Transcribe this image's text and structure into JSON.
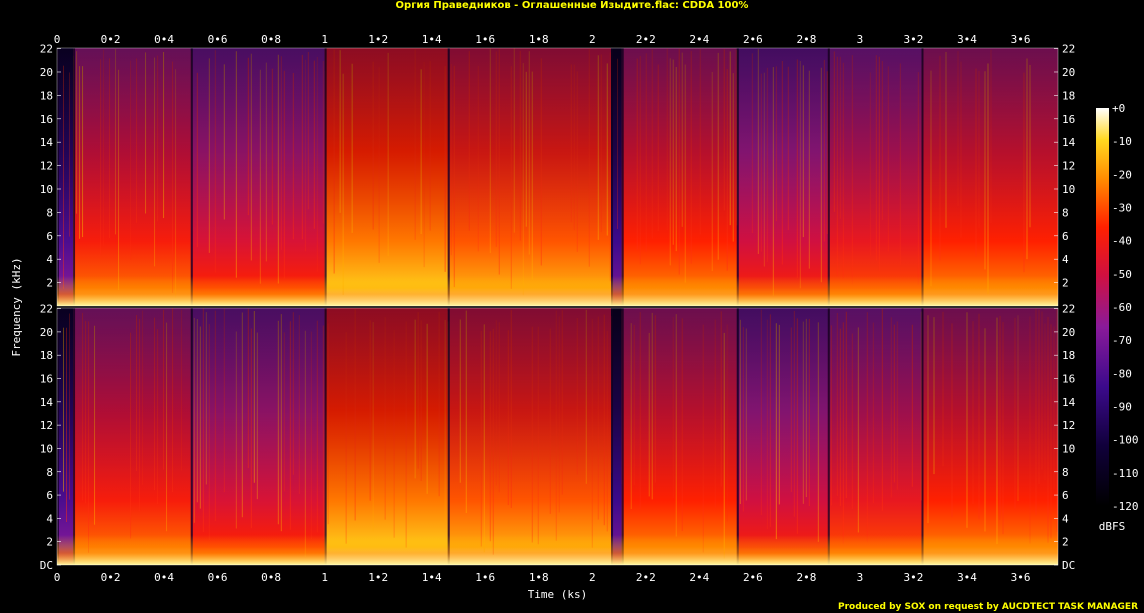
{
  "chart_data": {
    "type": "heatmap",
    "title": "Оргия Праведников - Оглашенные Изыдите.flac: CDDA 100%",
    "xlabel": "Time (ks)",
    "ylabel": "Frequency (kHz)",
    "colorbar_label": "dBFS",
    "channels": 2,
    "xlim": [
      0,
      3.74
    ],
    "ylim": [
      0,
      22.05
    ],
    "x_ticks": [
      "0",
      "0•2",
      "0•4",
      "0•6",
      "0•8",
      "1",
      "1•2",
      "1•4",
      "1•6",
      "1•8",
      "2",
      "2•2",
      "2•4",
      "2•6",
      "2•8",
      "3",
      "3•2",
      "3•4",
      "3•6"
    ],
    "y_ticks": [
      "DC",
      "2",
      "4",
      "6",
      "8",
      "10",
      "12",
      "14",
      "16",
      "18",
      "20",
      "22"
    ],
    "colorbar_ticks": [
      "+0",
      "-10",
      "-20",
      "-30",
      "-40",
      "-50",
      "-60",
      "-70",
      "-80",
      "-90",
      "-100",
      "-110",
      "-120"
    ],
    "colorbar_range": [
      -120,
      0
    ],
    "segments": [
      {
        "start": 0.0,
        "end": 0.06,
        "level": 0.25
      },
      {
        "start": 0.06,
        "end": 0.5,
        "level": 0.6
      },
      {
        "start": 0.5,
        "end": 1.0,
        "level": 0.52
      },
      {
        "start": 1.0,
        "end": 1.46,
        "level": 0.72
      },
      {
        "start": 1.46,
        "end": 2.07,
        "level": 0.68
      },
      {
        "start": 2.07,
        "end": 2.11,
        "level": 0.22
      },
      {
        "start": 2.11,
        "end": 2.54,
        "level": 0.62
      },
      {
        "start": 2.54,
        "end": 2.88,
        "level": 0.5
      },
      {
        "start": 2.88,
        "end": 3.23,
        "level": 0.56
      },
      {
        "start": 3.23,
        "end": 3.74,
        "level": 0.62
      }
    ],
    "colors": {
      "background": "#000000",
      "title": "#ffff00",
      "text": "#ffffff",
      "footer": "#ffff00"
    }
  },
  "footer": "Produced by SOX on request by AUCDTECT TASK MANAGER"
}
